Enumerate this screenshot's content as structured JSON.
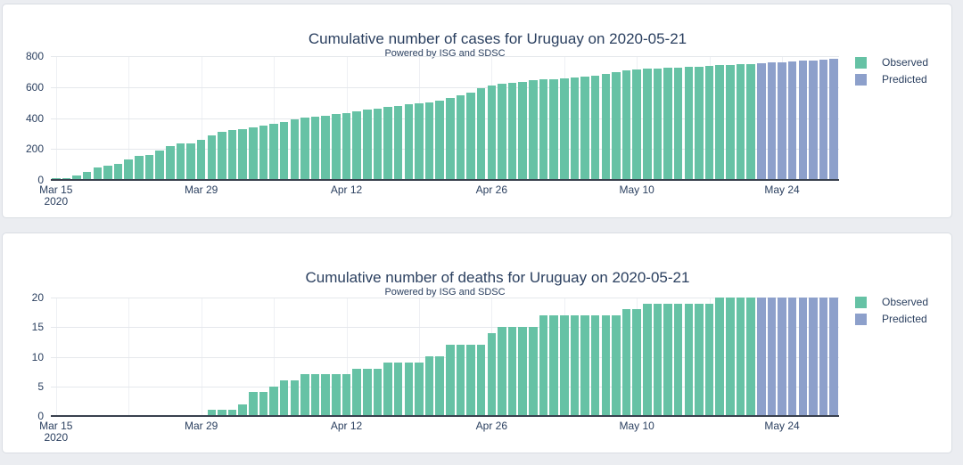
{
  "page": {
    "background_color": "#ebedf1",
    "card_background": "#ffffff",
    "text_color": "#2a3f5f",
    "observed_color": "#66c2a5",
    "predicted_color": "#8da0cb"
  },
  "chart_data": [
    {
      "type": "bar",
      "title": "Cumulative number of cases for Uruguay on 2020-05-21",
      "subtitle": "Powered by ISG and SDSC",
      "xlabel": "",
      "ylabel": "",
      "ylim": [
        0,
        800
      ],
      "yticks": [
        0,
        200,
        400,
        600,
        800
      ],
      "grid": true,
      "legend_position": "top-right",
      "x_date_range": [
        "2020-03-15",
        "2020-05-29"
      ],
      "x_tick_labels": [
        {
          "index": 0,
          "label": "Mar 15",
          "sublabel": "2020"
        },
        {
          "index": 14,
          "label": "Mar 29"
        },
        {
          "index": 28,
          "label": "Apr 12"
        },
        {
          "index": 42,
          "label": "Apr 26"
        },
        {
          "index": 56,
          "label": "May 10"
        },
        {
          "index": 70,
          "label": "May 24"
        }
      ],
      "legend": [
        {
          "label": "Observed",
          "color": "#66c2a5"
        },
        {
          "label": "Predicted",
          "color": "#8da0cb"
        }
      ],
      "series": [
        {
          "name": "Observed",
          "color": "#66c2a5",
          "date_range": [
            "2020-03-15",
            "2020-05-21"
          ],
          "values": [
            10,
            10,
            28,
            50,
            79,
            90,
            105,
            130,
            155,
            160,
            189,
            217,
            234,
            234,
            257,
            290,
            309,
            320,
            328,
            338,
            350,
            362,
            375,
            390,
            402,
            408,
            415,
            424,
            434,
            445,
            453,
            462,
            470,
            478,
            487,
            495,
            503,
            512,
            528,
            545,
            565,
            590,
            612,
            620,
            625,
            634,
            642,
            648,
            653,
            658,
            662,
            668,
            676,
            686,
            696,
            706,
            713,
            717,
            720,
            723,
            726,
            729,
            733,
            737,
            740,
            743,
            746,
            749
          ]
        },
        {
          "name": "Predicted",
          "color": "#8da0cb",
          "date_range": [
            "2020-05-22",
            "2020-05-29"
          ],
          "values": [
            754,
            758,
            762,
            766,
            769,
            772,
            776,
            780
          ]
        }
      ]
    },
    {
      "type": "bar",
      "title": "Cumulative number of deaths for Uruguay on 2020-05-21",
      "subtitle": "Powered by ISG and SDSC",
      "xlabel": "",
      "ylabel": "",
      "ylim": [
        0,
        20
      ],
      "yticks": [
        0,
        5,
        10,
        15,
        20
      ],
      "grid": true,
      "legend_position": "top-right",
      "x_date_range": [
        "2020-03-15",
        "2020-05-29"
      ],
      "x_tick_labels": [
        {
          "index": 0,
          "label": "Mar 15",
          "sublabel": "2020"
        },
        {
          "index": 14,
          "label": "Mar 29"
        },
        {
          "index": 28,
          "label": "Apr 12"
        },
        {
          "index": 42,
          "label": "Apr 26"
        },
        {
          "index": 56,
          "label": "May 10"
        },
        {
          "index": 70,
          "label": "May 24"
        }
      ],
      "legend": [
        {
          "label": "Observed",
          "color": "#66c2a5"
        },
        {
          "label": "Predicted",
          "color": "#8da0cb"
        }
      ],
      "series": [
        {
          "name": "Observed",
          "color": "#66c2a5",
          "date_range": [
            "2020-03-15",
            "2020-05-21"
          ],
          "values": [
            0,
            0,
            0,
            0,
            0,
            0,
            0,
            0,
            0,
            0,
            0,
            0,
            0,
            0,
            0,
            1,
            1,
            1,
            2,
            4,
            4,
            5,
            6,
            6,
            7,
            7,
            7,
            7,
            7,
            8,
            8,
            8,
            9,
            9,
            9,
            9,
            10,
            10,
            12,
            12,
            12,
            12,
            14,
            15,
            15,
            15,
            15,
            17,
            17,
            17,
            17,
            17,
            17,
            17,
            17,
            18,
            18,
            19,
            19,
            19,
            19,
            19,
            19,
            19,
            20,
            20,
            20,
            20
          ]
        },
        {
          "name": "Predicted",
          "color": "#8da0cb",
          "date_range": [
            "2020-05-22",
            "2020-05-29"
          ],
          "values": [
            20,
            20,
            20,
            20,
            20,
            20,
            20,
            20
          ]
        }
      ]
    }
  ]
}
